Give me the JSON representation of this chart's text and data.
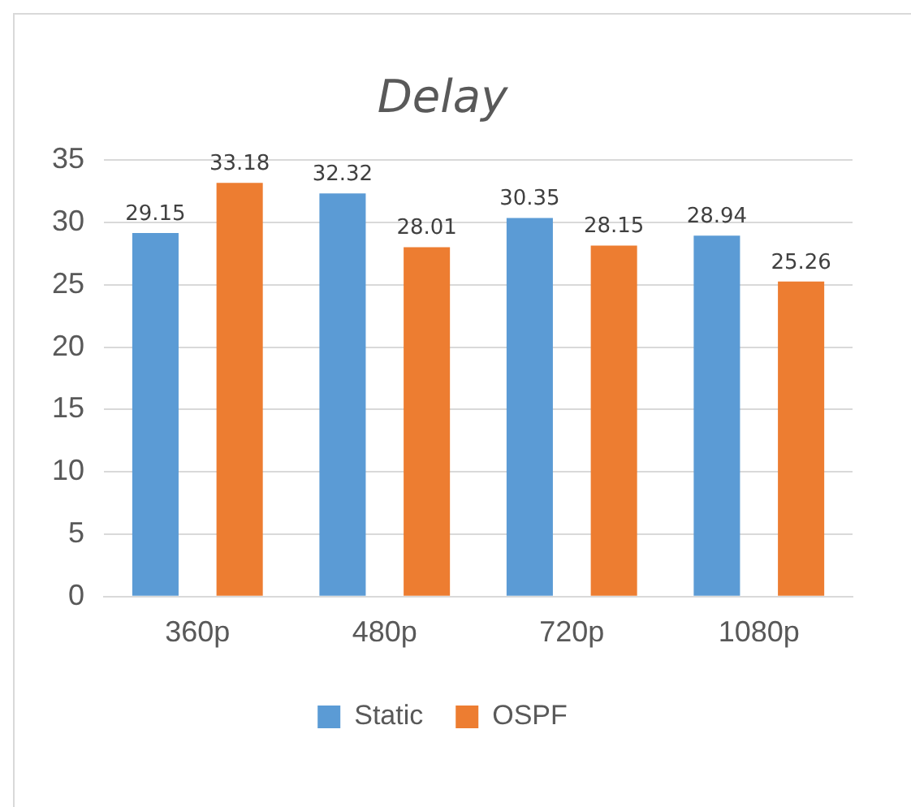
{
  "chart_data": {
    "type": "bar",
    "title": "Delay",
    "categories": [
      "360p",
      "480p",
      "720p",
      "1080p"
    ],
    "series": [
      {
        "name": "Static",
        "color": "#5b9bd5",
        "values": [
          29.15,
          32.32,
          30.35,
          28.94
        ]
      },
      {
        "name": "OSPF",
        "color": "#ed7d31",
        "values": [
          33.18,
          28.01,
          28.15,
          25.26
        ]
      }
    ],
    "ylim": [
      0,
      35
    ],
    "yticks": [
      0,
      5,
      10,
      15,
      20,
      25,
      30,
      35
    ],
    "grid": "y",
    "legend": "bottom",
    "data_labels": true
  }
}
